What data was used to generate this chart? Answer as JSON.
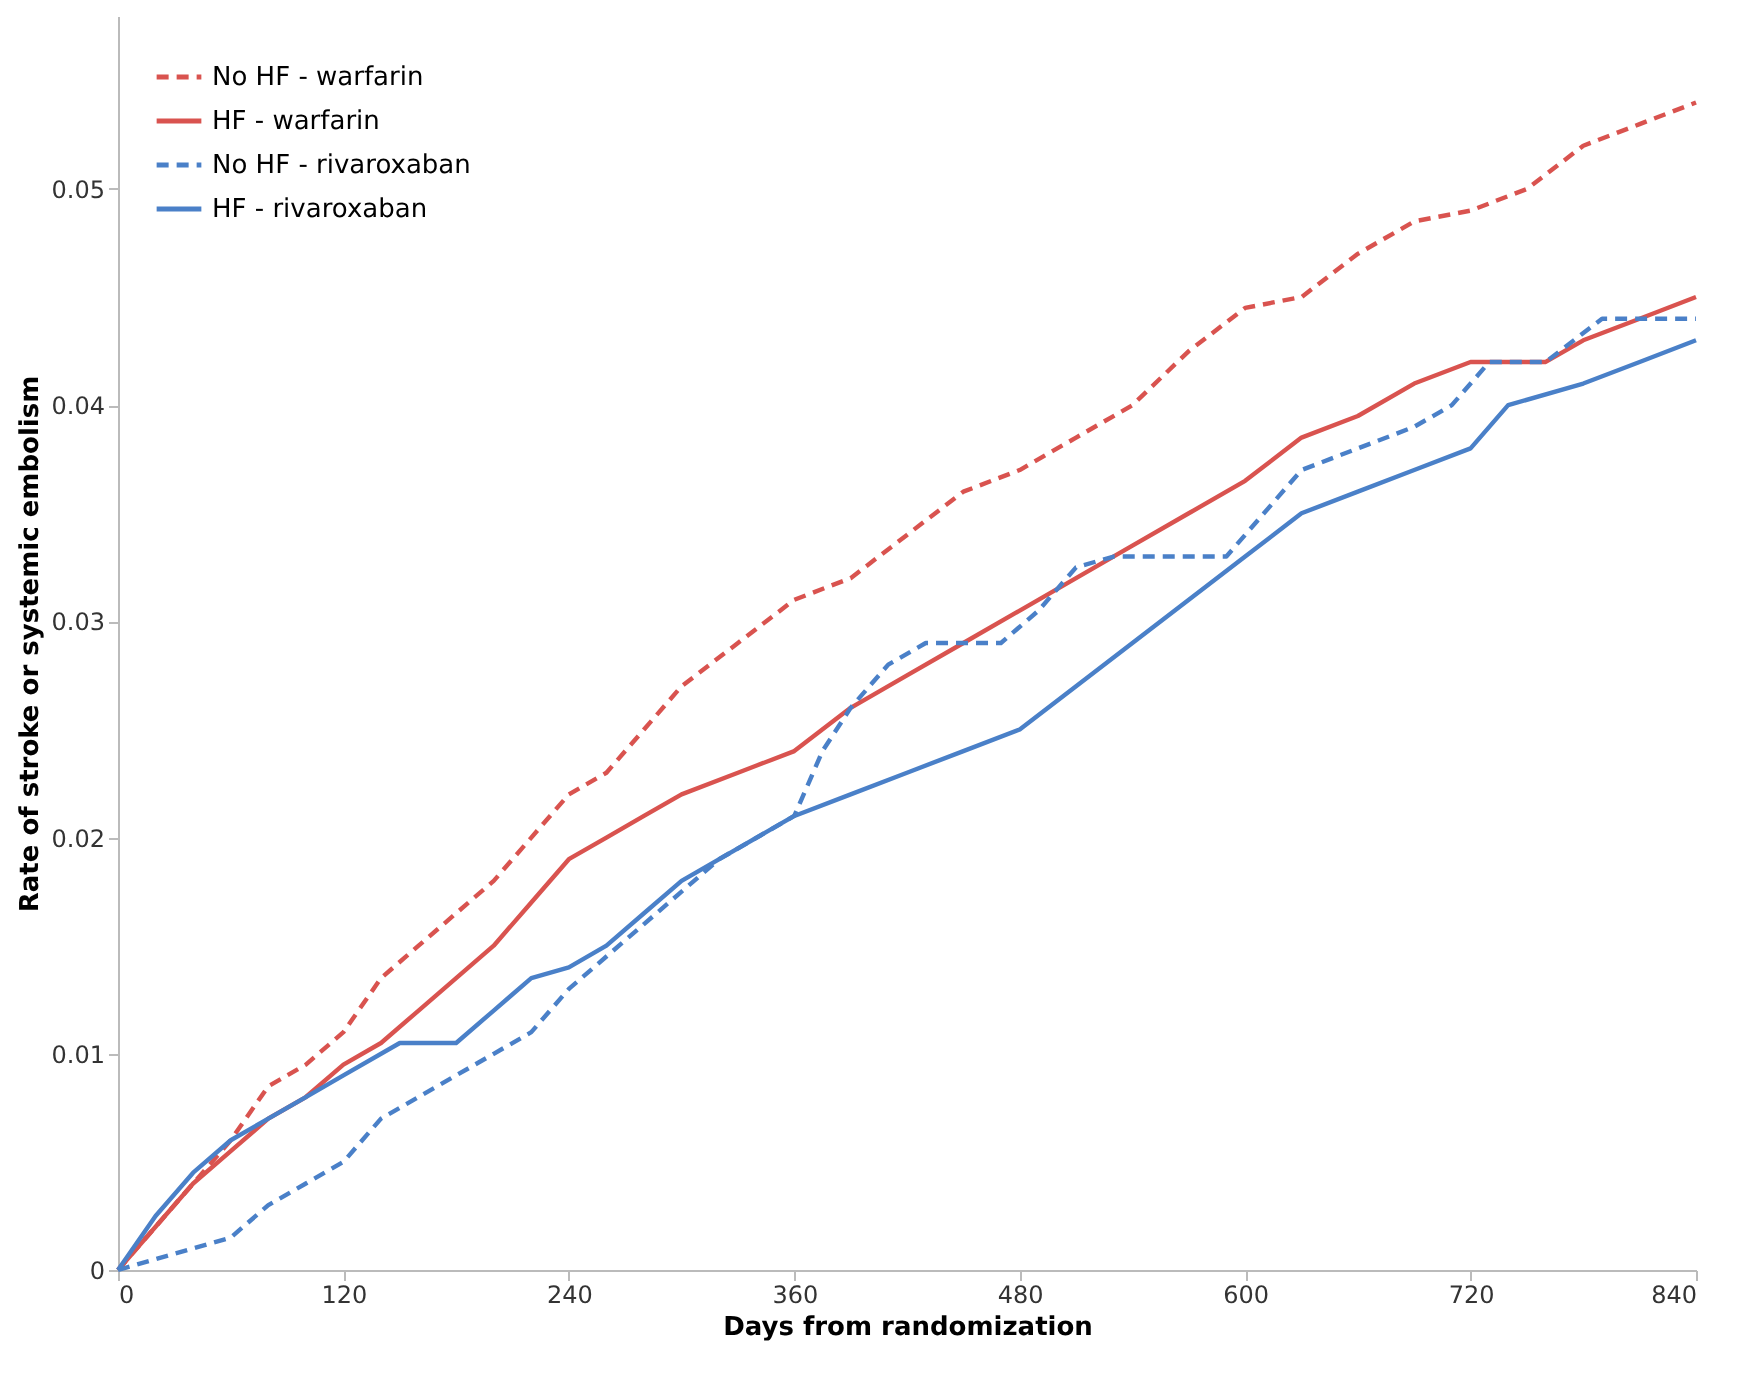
{
  "chart_data": {
    "type": "line",
    "xlabel": "Days from randomization",
    "ylabel": "Rate of stroke or systemic embolism",
    "xlim": [
      0,
      840
    ],
    "xticks": [
      0,
      120,
      240,
      360,
      480,
      600,
      720,
      840
    ],
    "ylim": [
      0,
      0.058
    ],
    "yticks": [
      0,
      0.01,
      0.02,
      0.03,
      0.04,
      0.05
    ],
    "grid": false,
    "legend": "top left",
    "marker": "none",
    "series": [
      {
        "name": "No HF - warfarin",
        "color": "#d9534f",
        "line_style": "dashed",
        "x": [
          0,
          20,
          40,
          60,
          80,
          100,
          120,
          140,
          160,
          180,
          200,
          220,
          240,
          260,
          280,
          300,
          330,
          360,
          390,
          420,
          450,
          480,
          510,
          540,
          570,
          600,
          630,
          660,
          690,
          720,
          750,
          780,
          810,
          840
        ],
        "values": [
          0,
          0.002,
          0.004,
          0.006,
          0.0085,
          0.0095,
          0.011,
          0.0135,
          0.015,
          0.0165,
          0.018,
          0.02,
          0.022,
          0.023,
          0.025,
          0.027,
          0.029,
          0.031,
          0.032,
          0.034,
          0.036,
          0.037,
          0.0385,
          0.04,
          0.0425,
          0.0445,
          0.045,
          0.047,
          0.0485,
          0.049,
          0.05,
          0.052,
          0.053,
          0.054
        ]
      },
      {
        "name": "HF - warfarin",
        "color": "#d9534f",
        "line_style": "solid",
        "x": [
          0,
          20,
          40,
          60,
          80,
          100,
          120,
          140,
          160,
          180,
          200,
          220,
          240,
          260,
          280,
          300,
          330,
          360,
          390,
          420,
          450,
          480,
          510,
          540,
          570,
          600,
          630,
          660,
          690,
          720,
          760,
          780,
          810,
          840
        ],
        "values": [
          0,
          0.002,
          0.004,
          0.0055,
          0.007,
          0.008,
          0.0095,
          0.0105,
          0.012,
          0.0135,
          0.015,
          0.017,
          0.019,
          0.02,
          0.021,
          0.022,
          0.023,
          0.024,
          0.026,
          0.0275,
          0.029,
          0.0305,
          0.032,
          0.0335,
          0.035,
          0.0365,
          0.0385,
          0.0395,
          0.041,
          0.042,
          0.042,
          0.043,
          0.044,
          0.045
        ]
      },
      {
        "name": "No HF - rivaroxaban",
        "color": "#4a80c8",
        "line_style": "dashed",
        "x": [
          0,
          20,
          40,
          60,
          80,
          100,
          120,
          140,
          160,
          180,
          200,
          220,
          240,
          260,
          280,
          300,
          320,
          340,
          360,
          375,
          390,
          410,
          430,
          470,
          490,
          510,
          530,
          590,
          610,
          630,
          660,
          690,
          710,
          730,
          760,
          790,
          840
        ],
        "values": [
          0,
          0.0005,
          0.001,
          0.0015,
          0.003,
          0.004,
          0.005,
          0.007,
          0.008,
          0.009,
          0.01,
          0.011,
          0.013,
          0.0145,
          0.016,
          0.0175,
          0.019,
          0.02,
          0.021,
          0.024,
          0.026,
          0.028,
          0.029,
          0.029,
          0.0305,
          0.0325,
          0.033,
          0.033,
          0.035,
          0.037,
          0.038,
          0.039,
          0.04,
          0.042,
          0.042,
          0.044,
          0.044
        ]
      },
      {
        "name": "HF - rivaroxaban",
        "color": "#4a80c8",
        "line_style": "solid",
        "x": [
          0,
          20,
          40,
          60,
          80,
          100,
          120,
          150,
          180,
          200,
          220,
          240,
          260,
          280,
          300,
          330,
          360,
          390,
          420,
          450,
          480,
          510,
          540,
          570,
          600,
          630,
          660,
          690,
          720,
          740,
          780,
          810,
          840
        ],
        "values": [
          0,
          0.0025,
          0.0045,
          0.006,
          0.007,
          0.008,
          0.009,
          0.0105,
          0.0105,
          0.012,
          0.0135,
          0.014,
          0.015,
          0.0165,
          0.018,
          0.0195,
          0.021,
          0.022,
          0.023,
          0.024,
          0.025,
          0.027,
          0.029,
          0.031,
          0.033,
          0.035,
          0.036,
          0.037,
          0.038,
          0.04,
          0.041,
          0.042,
          0.043
        ]
      }
    ]
  }
}
